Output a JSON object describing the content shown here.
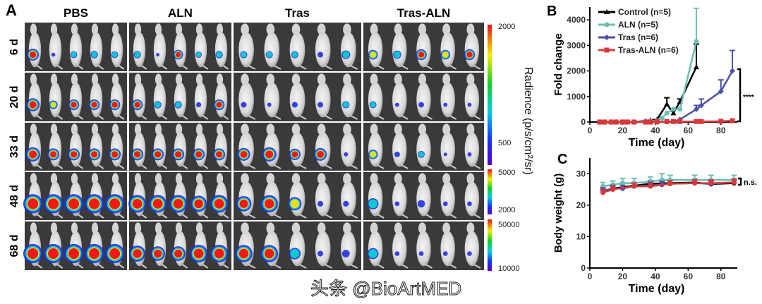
{
  "panel_a": {
    "label": "A",
    "groups": [
      "PBS",
      "ALN",
      "Tras",
      "Tras-ALN"
    ],
    "days": [
      "6 d",
      "20 d",
      "33 d",
      "48 d",
      "68 d"
    ],
    "signal_levels": {
      "PBS": [
        [
          0.8,
          0.1,
          0.35,
          0.4,
          0.35
        ],
        [
          0.9,
          0.5,
          0.7,
          0.7,
          0.7
        ],
        [
          1,
          0.8,
          0.8,
          0.8,
          0.8
        ],
        [
          1,
          1,
          1,
          1,
          1
        ],
        [
          1,
          1,
          1,
          1,
          1
        ]
      ],
      "ALN": [
        [
          0.4,
          0.05,
          0.6,
          0.3,
          0.4
        ],
        [
          0.7,
          0.4,
          0.4,
          0.2,
          0.7
        ],
        [
          0.8,
          0.8,
          0.8,
          0.8,
          0.8
        ],
        [
          0.9,
          0.9,
          0.9,
          0.8,
          0.9
        ],
        [
          0.8,
          0.7,
          0.7,
          0.9,
          0.9
        ]
      ],
      "Tras": [
        [
          0.3,
          0.3,
          0.3,
          0.2,
          0.4
        ],
        [
          0.2,
          0.1,
          0.2,
          0.2,
          0.3
        ],
        [
          0.7,
          0.8,
          0.6,
          0.7,
          0.1
        ],
        [
          0.6,
          0.7,
          0.5,
          0.1,
          0.1
        ],
        [
          0.7,
          0.7,
          0.4,
          0.1,
          0.2
        ]
      ],
      "Tras-ALN": [
        [
          0.5,
          0.4,
          0.6,
          0.5,
          0.6
        ],
        [
          0.3,
          0.1,
          0.2,
          0.1,
          0.1
        ],
        [
          0.5,
          0.2,
          0.3,
          0.05,
          0.1
        ],
        [
          0.4,
          0.05,
          0.2,
          0.05,
          0.05
        ],
        [
          0.4,
          0.05,
          0.05,
          0.05,
          0.05
        ]
      ]
    },
    "colorbar_title": "Radience (p/s/cm²/sr)",
    "colorbars": [
      {
        "max": "2000",
        "min": "500"
      },
      {
        "max": "5000",
        "min": "2000"
      },
      {
        "max": "50000",
        "min": "10000"
      }
    ]
  },
  "chart_data": [
    {
      "panel": "B",
      "type": "line",
      "xlabel": "Time (day)",
      "ylabel": "Fold change",
      "xlim": [
        0,
        90
      ],
      "ylim": [
        0,
        4500
      ],
      "xticks": [
        0,
        20,
        40,
        60,
        80
      ],
      "yticks": [
        0,
        1000,
        2000,
        3000,
        4000
      ],
      "legend_position": "top-left",
      "annotation": "****",
      "series": [
        {
          "name": "Control (n=5)",
          "color": "#000000",
          "marker": "triangle",
          "x": [
            6,
            9,
            13,
            16,
            20,
            23,
            27,
            34,
            37,
            41,
            47,
            51,
            55,
            65
          ],
          "y": [
            0,
            0,
            0,
            0,
            0,
            0,
            0,
            50,
            80,
            100,
            700,
            350,
            800,
            2150
          ],
          "err": [
            0,
            0,
            0,
            0,
            0,
            0,
            0,
            0,
            0,
            0,
            250,
            0,
            100,
            900
          ]
        },
        {
          "name": "ALN (n=5)",
          "color": "#6cbfb0",
          "marker": "circle",
          "x": [
            6,
            9,
            13,
            16,
            20,
            23,
            27,
            34,
            37,
            41,
            44,
            47,
            51,
            55,
            65
          ],
          "y": [
            0,
            0,
            0,
            0,
            0,
            0,
            0,
            30,
            40,
            50,
            150,
            350,
            500,
            500,
            3150
          ],
          "err": [
            0,
            0,
            0,
            0,
            0,
            0,
            0,
            0,
            0,
            0,
            0,
            0,
            0,
            0,
            1300
          ]
        },
        {
          "name": "Tras (n=6)",
          "color": "#4b4fa6",
          "marker": "diamond",
          "x": [
            6,
            9,
            13,
            16,
            20,
            23,
            27,
            34,
            37,
            41,
            47,
            51,
            55,
            65,
            68,
            80,
            87
          ],
          "y": [
            0,
            0,
            0,
            0,
            0,
            0,
            0,
            0,
            0,
            0,
            10,
            20,
            100,
            500,
            650,
            1200,
            2000
          ],
          "err": [
            0,
            0,
            0,
            0,
            0,
            0,
            0,
            0,
            0,
            0,
            0,
            0,
            0,
            150,
            250,
            450,
            800
          ]
        },
        {
          "name": "Tras-ALN (n=6)",
          "color": "#d9383a",
          "marker": "square",
          "x": [
            6,
            9,
            13,
            16,
            20,
            23,
            27,
            34,
            37,
            41,
            47,
            51,
            55,
            65,
            68,
            80,
            87
          ],
          "y": [
            0,
            0,
            0,
            0,
            0,
            0,
            0,
            0,
            0,
            10,
            20,
            20,
            20,
            20,
            20,
            30,
            50
          ],
          "err": [
            0,
            0,
            0,
            0,
            0,
            0,
            0,
            0,
            0,
            0,
            0,
            0,
            0,
            0,
            0,
            0,
            0
          ]
        }
      ]
    },
    {
      "panel": "C",
      "type": "line",
      "xlabel": "Time (day)",
      "ylabel": "Body weight (g)",
      "xlim": [
        0,
        90
      ],
      "ylim": [
        0,
        35
      ],
      "xticks": [
        0,
        20,
        40,
        60,
        80
      ],
      "yticks": [
        0,
        10,
        20,
        30
      ],
      "annotation": "n.s.",
      "series": [
        {
          "name": "Control (n=5)",
          "color": "#000000",
          "x": [
            8,
            14,
            27,
            37,
            49,
            64,
            74,
            88
          ],
          "y": [
            24.5,
            25.3,
            26.2,
            26.8,
            27.0,
            27.2,
            26.7,
            27.0
          ],
          "err": [
            1,
            1,
            1,
            1,
            1,
            1,
            1,
            1
          ]
        },
        {
          "name": "ALN (n=5)",
          "color": "#6cbfb0",
          "x": [
            8,
            14,
            20,
            27,
            37,
            44,
            49,
            64,
            74,
            88
          ],
          "y": [
            26,
            26.5,
            27,
            27,
            27.5,
            28,
            28,
            28,
            28,
            28
          ],
          "err": [
            1.2,
            1.2,
            1.5,
            1.5,
            1.5,
            2,
            1.5,
            1.5,
            1.5,
            1.5
          ]
        },
        {
          "name": "Tras (n=6)",
          "color": "#4b4fa6",
          "x": [
            8,
            14,
            20,
            27,
            37,
            44,
            49,
            64,
            74,
            88
          ],
          "y": [
            24.5,
            25.3,
            25.3,
            26,
            26.3,
            26.5,
            26.8,
            27,
            26.8,
            27.3
          ],
          "err": [
            1,
            1,
            1,
            1,
            1,
            1,
            1,
            1,
            1,
            1
          ]
        },
        {
          "name": "Tras-ALN (n=6)",
          "color": "#d9383a",
          "x": [
            8,
            14,
            27,
            37,
            49,
            64,
            74,
            88
          ],
          "y": [
            24,
            25,
            26,
            26,
            26.8,
            27,
            27,
            27.2
          ],
          "err": [
            1,
            1,
            1,
            1,
            1,
            1,
            1,
            1
          ]
        }
      ]
    }
  ],
  "watermark": "头条 @BioArtMED"
}
